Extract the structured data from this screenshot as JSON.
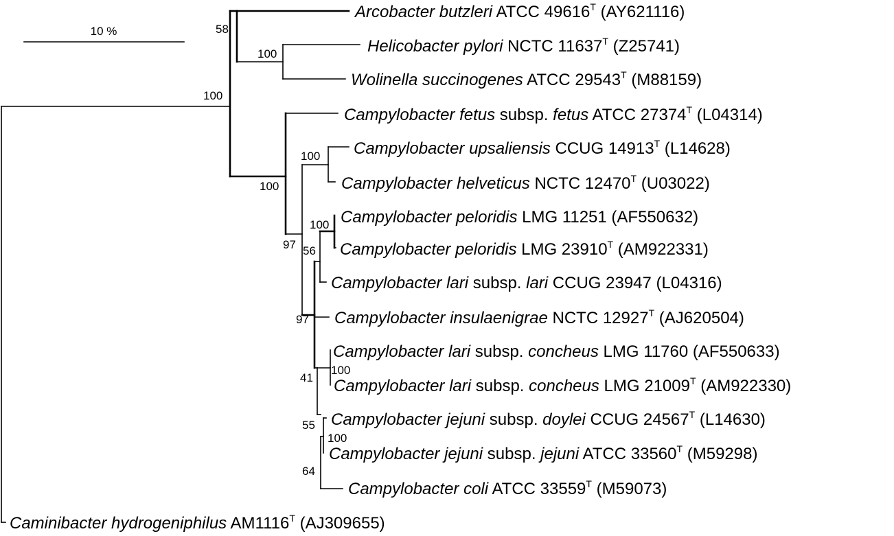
{
  "scale_bar": {
    "label": "10 %"
  },
  "taxa": [
    {
      "name": "Arcobacter butzleri",
      "rest": " ATCC 49616",
      "type": true,
      "acc": " (AY621116)"
    },
    {
      "name": "Helicobacter pylori",
      "rest": " NCTC 11637",
      "type": true,
      "acc": " (Z25741)"
    },
    {
      "name": "Wolinella succinogenes",
      "rest": " ATCC 29543",
      "type": true,
      "acc": " (M88159)"
    },
    {
      "name": "Campylobacter fetus",
      "mid": " subsp. ",
      "sub": "fetus",
      "rest": " ATCC 27374",
      "type": true,
      "acc": " (L04314)"
    },
    {
      "name": "Campylobacter upsaliensis",
      "rest": " CCUG 14913",
      "type": true,
      "acc": " (L14628)"
    },
    {
      "name": "Campylobacter helveticus",
      "rest": " NCTC 12470",
      "type": true,
      "acc": " (U03022)"
    },
    {
      "name": "Campylobacter peloridis",
      "rest": " LMG 11251 (AF550632)",
      "type": false,
      "acc": ""
    },
    {
      "name": "Campylobacter peloridis",
      "rest": " LMG 23910",
      "type": true,
      "acc": " (AM922331)"
    },
    {
      "name": "Campylobacter lari",
      "mid": " subsp. ",
      "sub": "lari",
      "rest": " CCUG 23947 (L04316)",
      "type": false,
      "acc": ""
    },
    {
      "name": "Campylobacter insulaenigrae",
      "rest": " NCTC 12927",
      "type": true,
      "acc": " (AJ620504)"
    },
    {
      "name": "Campylobacter lari",
      "mid": " subsp. ",
      "sub": "concheus",
      "rest": " LMG 11760 (AF550633)",
      "type": false,
      "acc": ""
    },
    {
      "name": "Campylobacter lari",
      "mid": " subsp. ",
      "sub": "concheus",
      "rest": " LMG 21009",
      "type": true,
      "acc": " (AM922330)"
    },
    {
      "name": "Campylobacter jejuni",
      "mid": " subsp. ",
      "sub": "doylei",
      "rest": " CCUG 24567",
      "type": true,
      "acc": " (L14630)"
    },
    {
      "name": "Campylobacter jejuni",
      "mid": " subsp. ",
      "sub": "jejuni",
      "rest": " ATCC 33560",
      "type": true,
      "acc": " (M59298)"
    },
    {
      "name": "Campylobacter coli",
      "rest": " ATCC 33559",
      "type": true,
      "acc": " (M59073)"
    },
    {
      "name": "Caminibacter hydrogeniphilus",
      "rest": " AM1116",
      "type": true,
      "acc": " (AJ309655)"
    }
  ],
  "type_strain_mark": "T",
  "bootstrap": [
    "58",
    "100",
    "100",
    "100",
    "100",
    "97",
    "100",
    "56",
    "97",
    "100",
    "41",
    "55",
    "100",
    "64"
  ]
}
